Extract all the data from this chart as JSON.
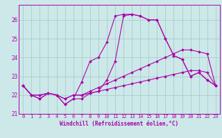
{
  "xlabel": "Windchill (Refroidissement éolien,°C)",
  "background_color": "#cce8e8",
  "grid_color": "#aacccc",
  "line_color": "#aa00aa",
  "hours": [
    0,
    1,
    2,
    3,
    4,
    5,
    6,
    7,
    8,
    9,
    10,
    11,
    12,
    13,
    14,
    15,
    16,
    17,
    18,
    19,
    20,
    21,
    22,
    23
  ],
  "series": [
    [
      22.5,
      22.0,
      21.8,
      22.1,
      22.0,
      21.5,
      21.8,
      21.8,
      22.1,
      22.2,
      22.8,
      23.8,
      26.2,
      26.3,
      26.2,
      26.0,
      26.0,
      25.0,
      24.1,
      23.9,
      23.0,
      23.2,
      22.8,
      22.5
    ],
    [
      22.5,
      22.0,
      21.8,
      22.1,
      22.0,
      21.5,
      21.8,
      22.7,
      23.8,
      24.0,
      24.8,
      26.2,
      26.3,
      26.3,
      26.2,
      26.0,
      26.0,
      25.0,
      24.1,
      23.9,
      23.0,
      23.2,
      22.8,
      22.5
    ],
    [
      22.5,
      22.0,
      22.0,
      22.1,
      22.0,
      21.8,
      22.0,
      22.0,
      22.2,
      22.4,
      22.6,
      22.8,
      23.0,
      23.2,
      23.4,
      23.6,
      23.8,
      24.0,
      24.2,
      24.4,
      24.4,
      24.3,
      24.2,
      22.5
    ],
    [
      22.5,
      22.0,
      22.0,
      22.1,
      22.0,
      21.8,
      22.0,
      22.0,
      22.1,
      22.2,
      22.3,
      22.4,
      22.5,
      22.6,
      22.7,
      22.8,
      22.9,
      23.0,
      23.1,
      23.2,
      23.3,
      23.3,
      23.2,
      22.5
    ]
  ],
  "ylim": [
    21.0,
    26.8
  ],
  "yticks": [
    21,
    22,
    23,
    24,
    25,
    26
  ],
  "xlim": [
    -0.5,
    23.5
  ],
  "tick_fontsize": 5.0,
  "xlabel_fontsize": 5.5,
  "marker_size": 2.0,
  "linewidth": 0.8
}
